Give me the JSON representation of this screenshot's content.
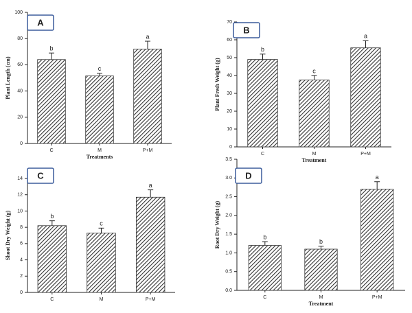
{
  "chart_data": [
    {
      "type": "bar",
      "panel_label": "A",
      "ylabel": "Plant Length (cm)",
      "xlabel": "Treatments",
      "categories": [
        "C",
        "M",
        "P+M"
      ],
      "values": [
        64,
        51.5,
        72
      ],
      "errors": [
        5,
        2,
        6
      ],
      "annotations": [
        "b",
        "c",
        "a"
      ],
      "ylim": [
        0,
        100
      ],
      "yticks": [
        0,
        20,
        40,
        60,
        80,
        100
      ],
      "color": "#333333"
    },
    {
      "type": "bar",
      "panel_label": "B",
      "ylabel": "Plant Fresh Weight (g)",
      "xlabel": "Treatment",
      "categories": [
        "C",
        "M",
        "P+M"
      ],
      "values": [
        49,
        37.5,
        55.5
      ],
      "errors": [
        3,
        2.5,
        4
      ],
      "annotations": [
        "b",
        "c",
        "a"
      ],
      "ylim": [
        0,
        70
      ],
      "yticks": [
        0,
        10,
        20,
        30,
        40,
        50,
        60,
        70
      ],
      "color": "#333333"
    },
    {
      "type": "bar",
      "panel_label": "C",
      "ylabel": "Shoot Dry Weight (g)",
      "categories": [
        "C",
        "M",
        "P+M"
      ],
      "values": [
        8.2,
        7.3,
        11.7
      ],
      "errors": [
        0.6,
        0.6,
        0.9
      ],
      "annotations": [
        "b",
        "c",
        "a"
      ],
      "ylim": [
        0,
        14
      ],
      "yticks": [
        0,
        2,
        4,
        6,
        8,
        10,
        12,
        14
      ],
      "color": "#333333"
    },
    {
      "type": "bar",
      "panel_label": "D",
      "ylabel": "Root Dry Weight (g)",
      "xlabel": "Treatment",
      "categories": [
        "C",
        "M",
        "P+M"
      ],
      "values": [
        1.2,
        1.1,
        2.7
      ],
      "errors": [
        0.1,
        0.08,
        0.2
      ],
      "annotations": [
        "b",
        "b",
        "a"
      ],
      "ylim": [
        0,
        3.5
      ],
      "yticks": [
        {
          "value": 0,
          "label": "0.0"
        },
        0.5,
        {
          "value": 1,
          "label": "1.0"
        },
        1.5,
        {
          "value": 2,
          "label": "2.0"
        },
        2.5,
        {
          "value": 3,
          "label": "3.0"
        },
        3.5
      ],
      "color": "#333333"
    }
  ]
}
